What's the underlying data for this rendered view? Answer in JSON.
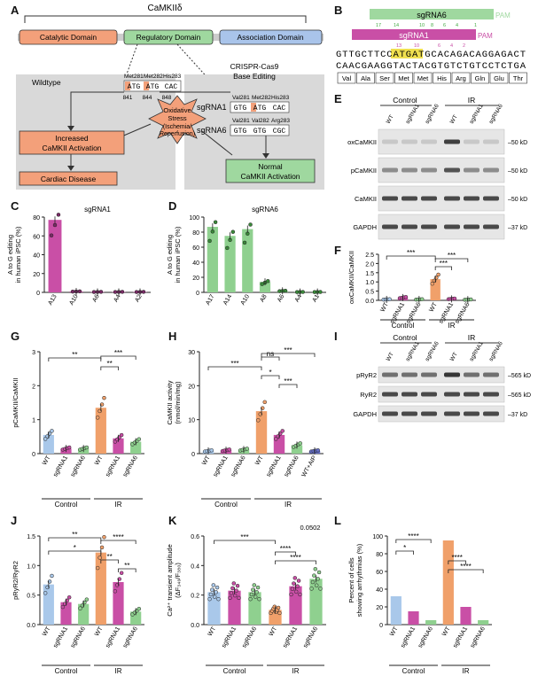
{
  "panels": {
    "A": "A",
    "B": "B",
    "C": "C",
    "D": "D",
    "E": "E",
    "F": "F",
    "G": "G",
    "H": "H",
    "I": "I",
    "J": "J",
    "K": "K",
    "L": "L"
  },
  "colors": {
    "wt": "#a9c8ea",
    "sg1": "#c94fa6",
    "sg6": "#8fd08f",
    "wt_ir": "#f0a06a",
    "catalytic": "#f3a07a",
    "regulatory": "#9fd89f",
    "association": "#a9c4ea",
    "gray": "#d9d9d9"
  },
  "panelA": {
    "title": "CaMKIIδ",
    "domains": [
      "Catalytic Domain",
      "Regulatory Domain",
      "Association Domain"
    ],
    "wildtype": "Wildtype",
    "crispr": [
      "CRISPR-Cas9",
      "Base Editing"
    ],
    "wt_sites": {
      "names": [
        "Met281",
        "Met282",
        "His283"
      ],
      "codons": [
        "ATG",
        "ATG",
        "CAC"
      ],
      "pos": [
        "841",
        "844",
        "848"
      ]
    },
    "sg1": {
      "label": "sgRNA1",
      "names": [
        "Val281",
        "Met282",
        "His283"
      ],
      "codons": [
        "GTG",
        "ATG",
        "CAC"
      ]
    },
    "sg6": {
      "label": "sgRNA6",
      "names": [
        "Val281",
        "Val282",
        "Arg283"
      ],
      "codons": [
        "GTG",
        "GTG",
        "CGC"
      ]
    },
    "stress": [
      "Oxidative",
      "Stress",
      "(Ischemia/",
      "Reperfusion)"
    ],
    "increased": [
      "Increased",
      "CaMKII Activation"
    ],
    "disease": "Cardiac Disease",
    "normal": [
      "Normal",
      "CaMKII Activation"
    ]
  },
  "panelB": {
    "sg6": "sgRNA6",
    "pam6": "PAM",
    "sg1": "sgRNA1",
    "pam1": "PAM",
    "nums_top": [
      "17",
      "14",
      "10",
      "8",
      "6",
      "4",
      "1"
    ],
    "nums_mid": [
      "13",
      "10",
      "6",
      "4",
      "2"
    ],
    "seq_top": "GTTGCTTCCATGATGCACAGACAGGAGACT",
    "seq_bot": "CAACGAAGGTACTACGTGTCTGTCCTCTGA",
    "aa": [
      "Val",
      "Ala",
      "Ser",
      "Met",
      "Met",
      "His",
      "Arg",
      "Gln",
      "Glu",
      "Thr"
    ]
  },
  "panelC": {
    "title": "sgRNA1",
    "ylabel": [
      "A to G editing",
      "in human iPSC (%)"
    ],
    "yticks": [
      "0",
      "20",
      "40",
      "60",
      "80"
    ],
    "chart_data": {
      "type": "bar",
      "categories": [
        "A13",
        "A10",
        "A6",
        "A4",
        "A2"
      ],
      "values": [
        77,
        1,
        0.5,
        0.5,
        0.5
      ],
      "ylim": [
        0,
        80
      ]
    }
  },
  "panelD": {
    "title": "sgRNA6",
    "ylabel": [
      "A to G editing",
      "in human iPSC (%)"
    ],
    "yticks": [
      "0",
      "20",
      "40",
      "60",
      "80",
      "100"
    ],
    "chart_data": {
      "type": "bar",
      "categories": [
        "A17",
        "A14",
        "A10",
        "A8",
        "A6",
        "A4",
        "A1"
      ],
      "values": [
        87,
        75,
        84,
        14,
        2,
        0.5,
        0.5
      ],
      "ylim": [
        0,
        100
      ]
    }
  },
  "panelE": {
    "groups": [
      "Control",
      "IR"
    ],
    "lanes": [
      "WT",
      "sgRNA1",
      "sgRNA6",
      "WT",
      "sgRNA1",
      "sgRNA6"
    ],
    "rows": [
      "oxCaMKII",
      "pCaMKII",
      "CaMKII",
      "GAPDH"
    ],
    "kd": [
      "50 kD",
      "50 kD",
      "50 kD",
      "37 kD"
    ]
  },
  "panelF": {
    "ylabel": "oxCaMKII/CaMKII",
    "yticks": [
      "0.0",
      "0.5",
      "1.0",
      "1.5",
      "2.0",
      "2.5"
    ],
    "sig": [
      "***",
      "***",
      "***"
    ],
    "groups": [
      "Control",
      "IR"
    ],
    "chart_data": {
      "type": "bar",
      "categories": [
        "WT",
        "sgRNA1",
        "sgRNA6",
        "WT",
        "sgRNA1",
        "sgRNA6"
      ],
      "values": [
        0.05,
        0.15,
        0.05,
        1.15,
        0.08,
        0.04
      ],
      "ylim": [
        0,
        2.5
      ]
    }
  },
  "panelG": {
    "ylabel": "pCaMKII/CaMKII",
    "yticks": [
      "0",
      "1",
      "2",
      "3"
    ],
    "sig": [
      "**",
      "**",
      "***"
    ],
    "groups": [
      "Control",
      "IR"
    ],
    "chart_data": {
      "type": "bar",
      "categories": [
        "WT",
        "sgRNA1",
        "sgRNA6",
        "WT",
        "sgRNA1",
        "sgRNA6"
      ],
      "values": [
        0.55,
        0.15,
        0.15,
        1.35,
        0.45,
        0.35
      ],
      "ylim": [
        0,
        3
      ]
    }
  },
  "panelH": {
    "ylabel": [
      "CaMKII activity",
      "(nmol/min/mg)"
    ],
    "yticks": [
      "0",
      "10",
      "20",
      "30"
    ],
    "sig": [
      "***",
      "ns",
      "***",
      "*",
      "***"
    ],
    "groups": [
      "Control",
      "IR"
    ],
    "chart_data": {
      "type": "bar",
      "categories": [
        "WT",
        "sgRNA1",
        "sgRNA6",
        "WT",
        "sgRNA1",
        "sgRNA6",
        "WT+AIP"
      ],
      "values": [
        0.8,
        1,
        1.2,
        12.5,
        5.5,
        2.5,
        0.8
      ],
      "ylim": [
        0,
        30
      ]
    }
  },
  "panelI": {
    "groups": [
      "Control",
      "IR"
    ],
    "lanes": [
      "WT",
      "sgRNA1",
      "sgRNA6",
      "WT",
      "sgRNA1",
      "sgRNA6"
    ],
    "rows": [
      "pRyR2",
      "RyR2",
      "GAPDH"
    ],
    "kd": [
      "565 kD",
      "565 kD",
      "37 kD"
    ]
  },
  "panelJ": {
    "ylabel": "pRyR2/RyR2",
    "yticks": [
      "0.0",
      "0.5",
      "1.0",
      "1.5"
    ],
    "sig": [
      "**",
      "*",
      "****",
      "**",
      "**"
    ],
    "groups": [
      "Control",
      "IR"
    ],
    "chart_data": {
      "type": "bar",
      "categories": [
        "WT",
        "sgRNA1",
        "sgRNA6",
        "WT",
        "sgRNA1",
        "sgRNA6"
      ],
      "values": [
        0.68,
        0.38,
        0.35,
        1.22,
        0.72,
        0.22
      ],
      "ylim": [
        0,
        1.5
      ]
    }
  },
  "panelK": {
    "ylabel": [
      "Ca²⁺ transient amplitude",
      "(ΔF₃₄₀/F₃₈₀)"
    ],
    "yticks": [
      "0.0",
      "0.2",
      "0.4",
      "0.6"
    ],
    "sig": [
      "***",
      "****",
      "****"
    ],
    "pval": "0.0502",
    "groups": [
      "Control",
      "IR"
    ],
    "chart_data": {
      "type": "bar",
      "categories": [
        "WT",
        "sgRNA1",
        "sgRNA6",
        "WT",
        "sgRNA1",
        "sgRNA6"
      ],
      "values": [
        0.22,
        0.23,
        0.22,
        0.1,
        0.26,
        0.31
      ],
      "ylim": [
        0,
        0.6
      ]
    }
  },
  "panelL": {
    "ylabel": [
      "Percent of cells",
      "showing arrhythmias (%)"
    ],
    "yticks": [
      "0",
      "20",
      "40",
      "60",
      "80",
      "100"
    ],
    "sig": [
      "****",
      "*",
      "****",
      "****"
    ],
    "groups": [
      "Control",
      "IR"
    ],
    "chart_data": {
      "type": "bar",
      "categories": [
        "WT",
        "sgRNA1",
        "sgRNA6",
        "WT",
        "sgRNA1",
        "sgRNA6"
      ],
      "values": [
        32,
        15,
        5,
        95,
        20,
        5
      ],
      "ylim": [
        0,
        100
      ]
    }
  }
}
